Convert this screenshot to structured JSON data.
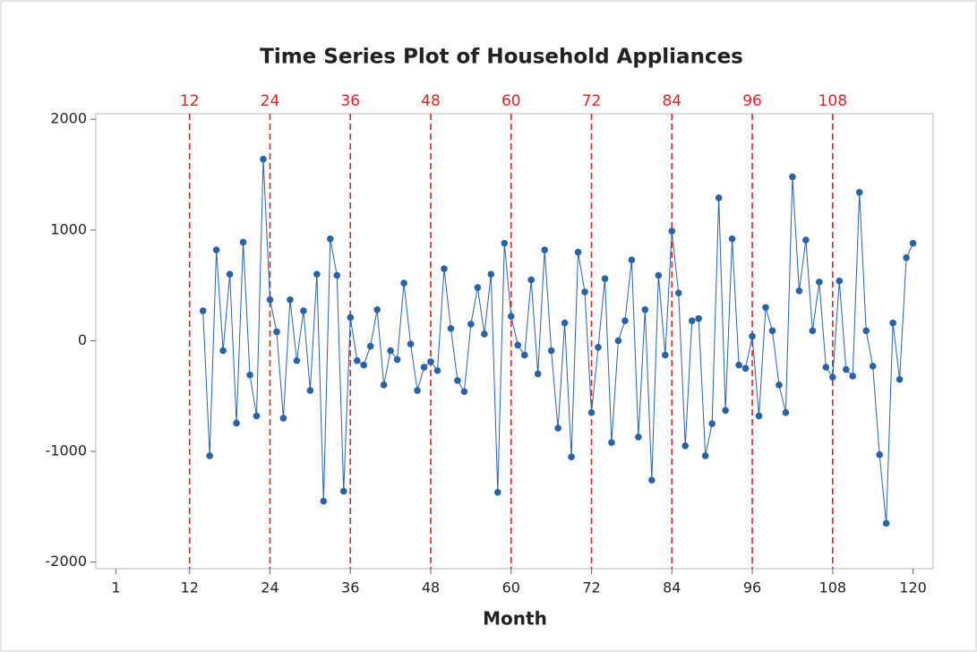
{
  "chart_data": {
    "type": "line",
    "title": "Time Series Plot of Household Appliances",
    "x_label": "Month",
    "x": [
      14,
      15,
      16,
      17,
      18,
      19,
      20,
      21,
      22,
      23,
      24,
      25,
      26,
      27,
      28,
      29,
      30,
      31,
      32,
      33,
      34,
      35,
      36,
      37,
      38,
      39,
      40,
      41,
      42,
      43,
      44,
      45,
      46,
      47,
      48,
      49,
      50,
      51,
      52,
      53,
      54,
      55,
      56,
      57,
      58,
      59,
      60,
      61,
      62,
      63,
      64,
      65,
      66,
      67,
      68,
      69,
      70,
      71,
      72,
      73,
      74,
      75,
      76,
      77,
      78,
      79,
      80,
      81,
      82,
      83,
      84,
      85,
      86,
      87,
      88,
      89,
      90,
      91,
      92,
      93,
      94,
      95,
      96,
      97,
      98,
      99,
      100,
      101,
      102,
      103,
      104,
      105,
      106,
      107,
      108,
      109,
      110,
      111,
      112,
      113,
      114,
      115,
      116,
      117,
      118,
      119,
      120
    ],
    "values": [
      270,
      -1040,
      820,
      -90,
      600,
      -745,
      890,
      -310,
      -680,
      1640,
      370,
      80,
      -700,
      370,
      -180,
      270,
      -450,
      600,
      -1450,
      920,
      590,
      -1360,
      210,
      -180,
      -220,
      -50,
      280,
      -400,
      -90,
      -170,
      520,
      -30,
      -450,
      -240,
      -190,
      -270,
      650,
      110,
      -360,
      -460,
      150,
      480,
      60,
      600,
      -1370,
      880,
      220,
      -40,
      -130,
      550,
      -300,
      820,
      -90,
      -790,
      160,
      -1050,
      800,
      440,
      -650,
      -60,
      560,
      -920,
      0,
      180,
      730,
      -870,
      280,
      -1260,
      590,
      -130,
      990,
      430,
      -950,
      180,
      200,
      -1040,
      -750,
      1290,
      -630,
      920,
      -220,
      -250,
      40,
      -680,
      300,
      90,
      -400,
      -650,
      1480,
      450,
      910,
      90,
      530,
      -240,
      -330,
      540,
      -260,
      -320,
      1340,
      90,
      -230,
      -1030,
      -1650,
      160,
      -350,
      750,
      880
    ],
    "color": "#2a62a8",
    "reference_lines": [
      12,
      24,
      36,
      48,
      60,
      72,
      84,
      96,
      108
    ],
    "reference_color": "#d62728",
    "xlim": [
      -2,
      123
    ],
    "xticks": [
      1,
      12,
      24,
      36,
      48,
      60,
      72,
      84,
      96,
      108,
      120
    ],
    "ylim": [
      -2060,
      2050
    ],
    "yticks": [
      -2000,
      -1000,
      0,
      1000,
      2000
    ],
    "grid": false
  }
}
